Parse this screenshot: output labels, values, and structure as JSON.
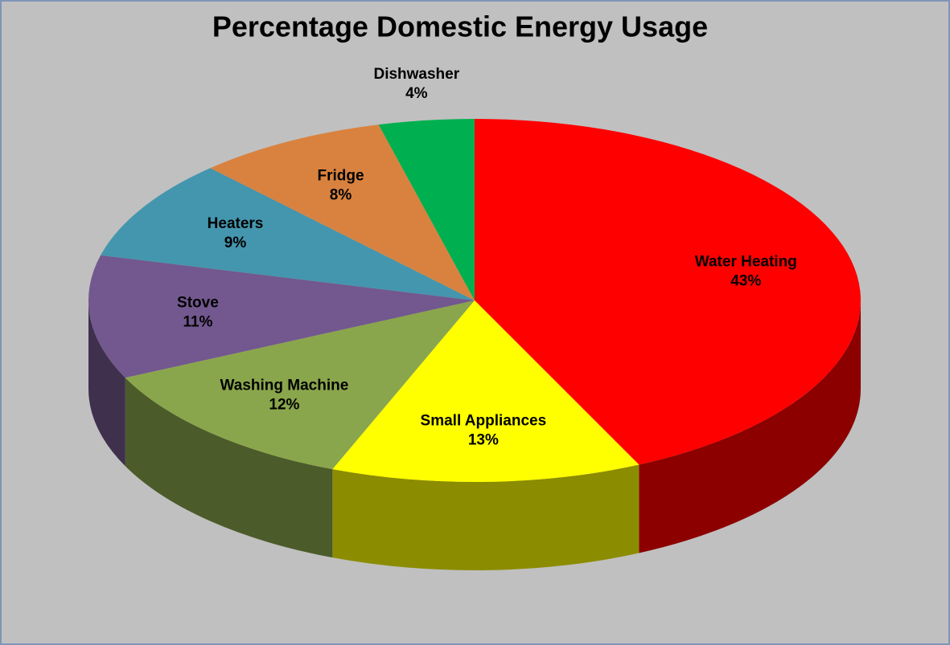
{
  "chart_data": {
    "type": "pie",
    "title": "Percentage Domestic Energy Usage",
    "categories": [
      "Water Heating",
      "Small Appliances",
      "Washing Machine",
      "Stove",
      "Heaters",
      "Fridge",
      "Dishwasher"
    ],
    "values": [
      43,
      13,
      12,
      11,
      9,
      8,
      4
    ],
    "value_labels": [
      "43%",
      "13%",
      "12%",
      "11%",
      "9%",
      "8%",
      "4%"
    ],
    "colors": [
      "#ff0000",
      "#ffff00",
      "#8aa64c",
      "#72588e",
      "#4396ae",
      "#d9823f",
      "#00b050"
    ]
  }
}
